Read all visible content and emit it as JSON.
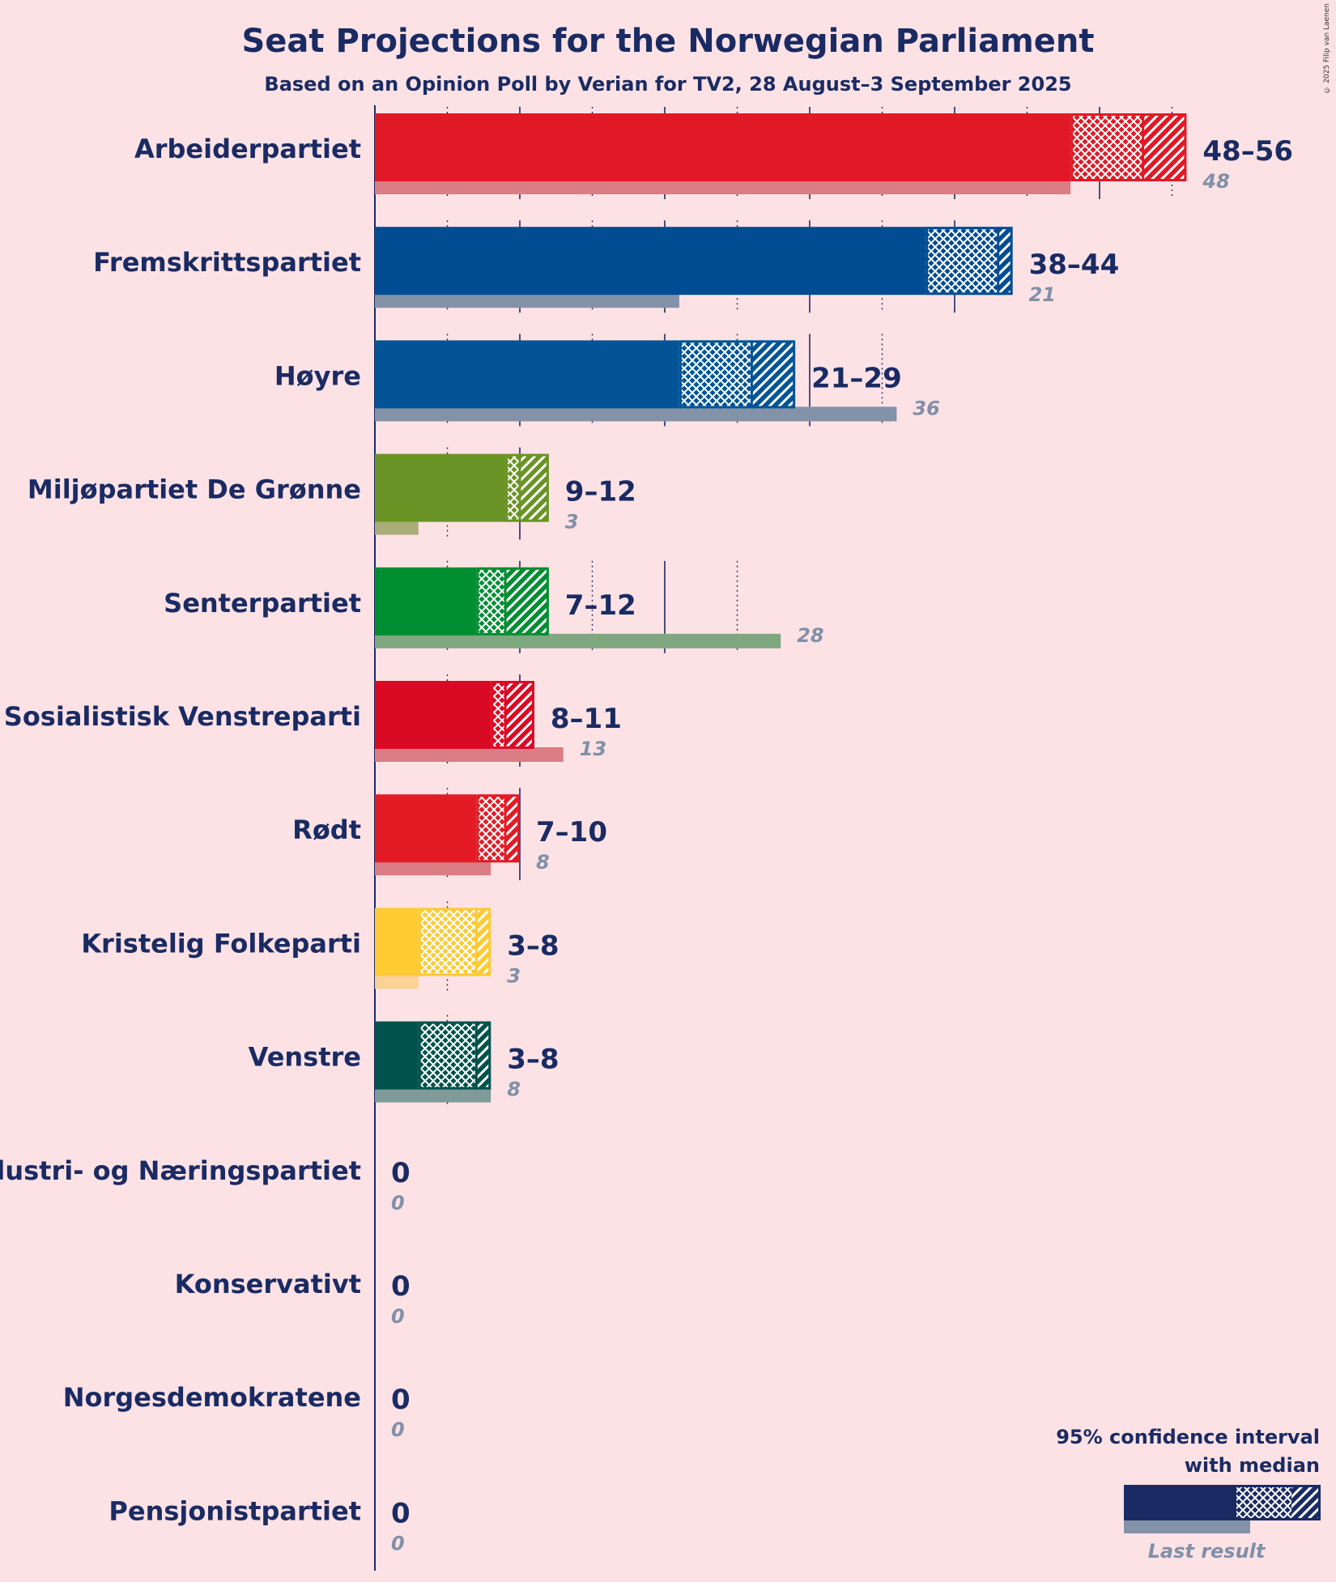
{
  "chart_data": {
    "type": "bar",
    "orientation": "horizontal",
    "title": "Seat Projections for the Norwegian Parliament",
    "subtitle": "Based on an Opinion Poll by Verian for TV2, 28 August–3 September 2025",
    "credit": "© 2025 Filip van Laenen",
    "xlim": [
      0,
      56
    ],
    "gridlines": {
      "solid_every": 10,
      "dotted_every": 5
    },
    "legend": {
      "position": "bottom-right",
      "ci_label": "95% confidence interval with median",
      "ci_label_lines": [
        "95% confidence interval",
        "with median"
      ],
      "last_result_label": "Last result",
      "example": {
        "low": 0,
        "median": 16,
        "high": 23,
        "last": 14,
        "max": 27
      }
    },
    "parties": [
      {
        "name": "Arbeiderpartiet",
        "low": 48,
        "median": 53,
        "high": 56,
        "range_label": "48–56",
        "last_result": 48,
        "last_label": "48",
        "color": "#E11926",
        "last_color": "#DA7D84"
      },
      {
        "name": "Fremskrittspartiet",
        "low": 38,
        "median": 43,
        "high": 44,
        "range_label": "38–44",
        "last_result": 21,
        "last_label": "21",
        "color": "#024C93",
        "last_color": "#8492A9"
      },
      {
        "name": "Høyre",
        "low": 21,
        "median": 26,
        "high": 29,
        "range_label": "21–29",
        "last_result": 36,
        "last_label": "36",
        "color": "#025497",
        "last_color": "#8492A9"
      },
      {
        "name": "Miljøpartiet De Grønne",
        "low": 9,
        "median": 10,
        "high": 12,
        "range_label": "9–12",
        "last_result": 3,
        "last_label": "3",
        "color": "#6A9325",
        "last_color": "#AAAC7A"
      },
      {
        "name": "Senterpartiet",
        "low": 7,
        "median": 9,
        "high": 12,
        "range_label": "7–12",
        "last_result": 28,
        "last_label": "28",
        "color": "#008E32",
        "last_color": "#7FA780"
      },
      {
        "name": "Sosialistisk Venstreparti",
        "low": 8,
        "median": 9,
        "high": 11,
        "range_label": "8–11",
        "last_result": 13,
        "last_label": "13",
        "color": "#DB0A24",
        "last_color": "#DA7D84"
      },
      {
        "name": "Rødt",
        "low": 7,
        "median": 9,
        "high": 10,
        "range_label": "7–10",
        "last_result": 8,
        "last_label": "8",
        "color": "#E31B25",
        "last_color": "#DA7D84"
      },
      {
        "name": "Kristelig Folkeparti",
        "low": 3,
        "median": 7,
        "high": 8,
        "range_label": "3–8",
        "last_result": 3,
        "last_label": "3",
        "color": "#FFCA32",
        "last_color": "#FBD195"
      },
      {
        "name": "Venstre",
        "low": 3,
        "median": 7,
        "high": 8,
        "range_label": "3–8",
        "last_result": 8,
        "last_label": "8",
        "color": "#00524C",
        "last_color": "#7F9A97"
      },
      {
        "name": "Industri- og Næringspartiet",
        "low": 0,
        "median": 0,
        "high": 0,
        "range_label": "0",
        "last_result": 0,
        "last_label": "0",
        "color": "#1F2E5E",
        "last_color": "#8492A9"
      },
      {
        "name": "Konservativt",
        "low": 0,
        "median": 0,
        "high": 0,
        "range_label": "0",
        "last_result": 0,
        "last_label": "0",
        "color": "#1F2E5E",
        "last_color": "#8492A9"
      },
      {
        "name": "Norgesdemokratene",
        "low": 0,
        "median": 0,
        "high": 0,
        "range_label": "0",
        "last_result": 0,
        "last_label": "0",
        "color": "#1F2E5E",
        "last_color": "#8492A9"
      },
      {
        "name": "Pensjonistpartiet",
        "low": 0,
        "median": 0,
        "high": 0,
        "range_label": "0",
        "last_result": 0,
        "last_label": "0",
        "color": "#1F2E5E",
        "last_color": "#8492A9"
      }
    ],
    "colors": {
      "background": "#FDE2E5",
      "text": "#1A2B63",
      "axis": "#1A2B63",
      "last_label": "#8090A8",
      "legend_bar": "#1A2B63",
      "legend_last": "#8492A9"
    }
  }
}
